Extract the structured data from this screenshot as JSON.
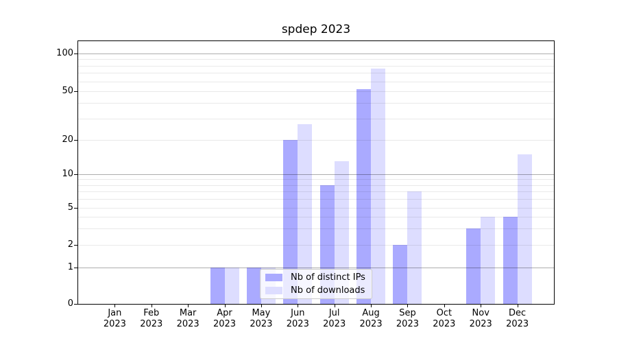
{
  "chart_data": {
    "type": "bar",
    "title": "spdep 2023",
    "categories": [
      "Jan",
      "Feb",
      "Mar",
      "Apr",
      "May",
      "Jun",
      "Jul",
      "Aug",
      "Sep",
      "Oct",
      "Nov",
      "Dec"
    ],
    "x_tick_year": "2023",
    "series": [
      {
        "name": "Nb of distinct IPs",
        "color": "#aaaaff",
        "values": [
          0,
          0,
          0,
          1,
          1,
          20,
          8,
          52,
          2,
          0,
          3,
          4
        ]
      },
      {
        "name": "Nb of downloads",
        "color": "#ddddff",
        "values": [
          0,
          0,
          0,
          1,
          1,
          27,
          13,
          76,
          7,
          0,
          4,
          15
        ]
      }
    ],
    "y_ticks": [
      "0",
      "1",
      "2",
      "5",
      "10",
      "20",
      "50",
      "100"
    ],
    "y_tick_values": [
      0,
      1,
      2,
      5,
      10,
      20,
      50,
      100
    ],
    "ylim": [
      0,
      125
    ],
    "y_scale": "log-like (custom spacing, 0 baseline)",
    "grid": "horizontal; dark lines at 1,10,100; light minor lines at 2-9, 20-90",
    "legend_position": "lower center inside plot",
    "colors": {
      "major_gridline": "#adadad",
      "minor_gridline": "#eaeaea",
      "axis": "#000000",
      "background": "#ffffff"
    }
  }
}
